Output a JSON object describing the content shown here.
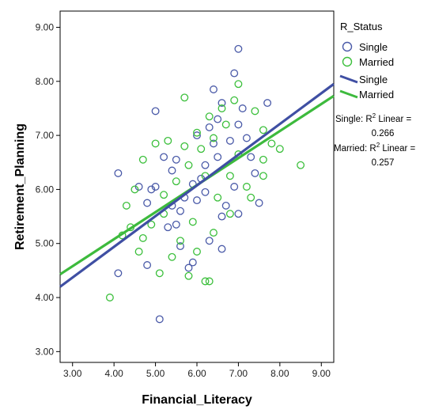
{
  "chart_data": {
    "type": "scatter",
    "title": "",
    "xlabel": "Financial_Literacy",
    "ylabel": "Retirement_Planning",
    "xlim": [
      2.7,
      9.3
    ],
    "ylim": [
      2.8,
      9.3
    ],
    "xticks": [
      "3.00",
      "4.00",
      "5.00",
      "6.00",
      "7.00",
      "8.00",
      "9.00"
    ],
    "yticks": [
      "3.00",
      "4.00",
      "5.00",
      "6.00",
      "7.00",
      "8.00",
      "9.00"
    ],
    "grid": false,
    "legend_position": "right",
    "legend_title": "R_Status",
    "series": [
      {
        "name": "Single",
        "color": "#4a5aa8",
        "marker": "hollow-circle",
        "points": [
          [
            7.0,
            8.6
          ],
          [
            5.0,
            7.45
          ],
          [
            7.7,
            7.6
          ],
          [
            6.9,
            8.15
          ],
          [
            6.4,
            7.85
          ],
          [
            6.3,
            7.15
          ],
          [
            4.1,
            6.3
          ],
          [
            4.6,
            6.05
          ],
          [
            5.2,
            6.6
          ],
          [
            5.5,
            6.55
          ],
          [
            5.4,
            6.35
          ],
          [
            5.0,
            6.05
          ],
          [
            4.8,
            5.75
          ],
          [
            5.6,
            5.6
          ],
          [
            6.0,
            5.8
          ],
          [
            6.2,
            5.95
          ],
          [
            6.1,
            6.2
          ],
          [
            6.5,
            6.6
          ],
          [
            6.8,
            6.9
          ],
          [
            7.0,
            7.2
          ],
          [
            7.3,
            6.6
          ],
          [
            7.4,
            6.3
          ],
          [
            7.5,
            5.75
          ],
          [
            6.6,
            5.5
          ],
          [
            5.3,
            5.3
          ],
          [
            5.6,
            4.95
          ],
          [
            5.9,
            4.65
          ],
          [
            5.8,
            4.55
          ],
          [
            4.8,
            4.6
          ],
          [
            4.1,
            4.45
          ],
          [
            5.1,
            3.6
          ],
          [
            6.9,
            6.05
          ],
          [
            6.7,
            5.7
          ],
          [
            7.0,
            5.55
          ],
          [
            6.4,
            6.85
          ],
          [
            6.0,
            7.0
          ],
          [
            7.1,
            7.5
          ],
          [
            6.6,
            7.6
          ],
          [
            6.2,
            6.45
          ],
          [
            5.9,
            6.1
          ],
          [
            5.7,
            5.85
          ],
          [
            5.5,
            5.35
          ],
          [
            6.3,
            5.05
          ],
          [
            6.6,
            4.9
          ],
          [
            7.2,
            6.95
          ],
          [
            6.5,
            7.3
          ],
          [
            4.9,
            6.0
          ],
          [
            5.4,
            5.7
          ]
        ]
      },
      {
        "name": "Married",
        "color": "#3bbf3b",
        "marker": "hollow-circle",
        "points": [
          [
            3.9,
            4.0
          ],
          [
            4.2,
            5.15
          ],
          [
            4.4,
            5.3
          ],
          [
            4.6,
            4.85
          ],
          [
            4.3,
            5.7
          ],
          [
            4.5,
            6.0
          ],
          [
            4.7,
            6.55
          ],
          [
            5.0,
            6.85
          ],
          [
            5.3,
            6.9
          ],
          [
            5.7,
            7.7
          ],
          [
            6.3,
            7.35
          ],
          [
            7.0,
            7.95
          ],
          [
            7.4,
            7.45
          ],
          [
            7.6,
            7.1
          ],
          [
            7.8,
            6.85
          ],
          [
            8.0,
            6.75
          ],
          [
            8.5,
            6.45
          ],
          [
            7.6,
            6.55
          ],
          [
            7.2,
            6.05
          ],
          [
            7.3,
            5.85
          ],
          [
            7.6,
            6.25
          ],
          [
            6.8,
            5.55
          ],
          [
            6.4,
            5.2
          ],
          [
            6.0,
            4.85
          ],
          [
            5.8,
            4.4
          ],
          [
            6.2,
            4.3
          ],
          [
            6.3,
            4.3
          ],
          [
            5.1,
            4.45
          ],
          [
            5.4,
            4.75
          ],
          [
            4.9,
            5.35
          ],
          [
            5.2,
            5.9
          ],
          [
            5.5,
            6.15
          ],
          [
            5.8,
            6.45
          ],
          [
            6.1,
            6.75
          ],
          [
            6.4,
            6.95
          ],
          [
            6.7,
            7.2
          ],
          [
            6.9,
            7.65
          ],
          [
            6.6,
            7.5
          ],
          [
            5.9,
            5.4
          ],
          [
            5.6,
            5.05
          ],
          [
            6.5,
            5.85
          ],
          [
            6.2,
            6.25
          ],
          [
            5.7,
            6.8
          ],
          [
            6.0,
            7.05
          ],
          [
            5.2,
            5.55
          ],
          [
            7.0,
            6.65
          ],
          [
            6.8,
            6.25
          ],
          [
            4.7,
            5.1
          ]
        ]
      }
    ],
    "fit_lines": [
      {
        "name": "Single",
        "x": [
          2.7,
          9.3
        ],
        "y": [
          4.2,
          7.95
        ],
        "color": "#3f4fa3"
      },
      {
        "name": "Married",
        "x": [
          2.7,
          9.3
        ],
        "y": [
          4.43,
          7.73
        ],
        "color": "#3dba3d"
      }
    ],
    "annotations": {
      "single_r2_prefix": "Single: R",
      "single_r2_suffix": " Linear =",
      "single_r2_value": "0.266",
      "married_r2_prefix": "Married: R",
      "married_r2_suffix": " Linear =",
      "married_r2_value": "0.257",
      "superscript": "2"
    }
  }
}
